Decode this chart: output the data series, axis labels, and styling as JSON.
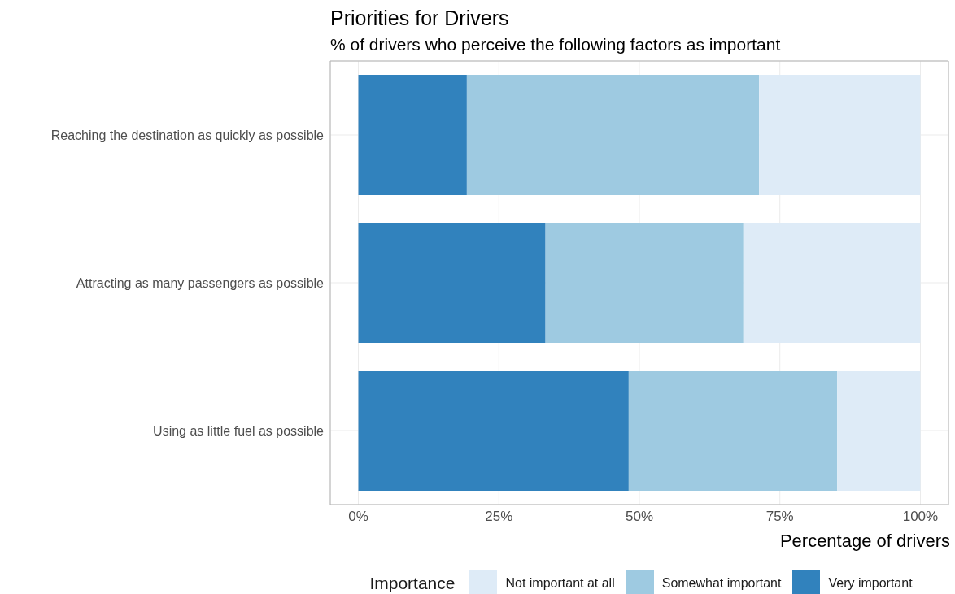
{
  "chart_data": {
    "type": "bar",
    "title": "Priorities for Drivers",
    "subtitle": "% of drivers who perceive the following factors as important",
    "xlabel": "Percentage of drivers",
    "legend_title": "Importance",
    "orientation": "horizontal",
    "stacked": true,
    "categories": [
      "Reaching the destination as quickly as possible",
      "Attracting as many passengers as possible",
      "Using as little fuel as possible"
    ],
    "series": [
      {
        "name": "Very important",
        "color": "#3182bd",
        "values": [
          19.3,
          33.3,
          48.1
        ]
      },
      {
        "name": "Somewhat important",
        "color": "#9ecae1",
        "values": [
          52.0,
          35.2,
          37.1
        ]
      },
      {
        "name": "Not important at all",
        "color": "#deebf7",
        "values": [
          28.7,
          31.5,
          14.8
        ]
      }
    ],
    "xlim": [
      -5,
      105
    ],
    "xticks": [
      {
        "value": 0,
        "label": "0%"
      },
      {
        "value": 25,
        "label": "25%"
      },
      {
        "value": 50,
        "label": "50%"
      },
      {
        "value": 75,
        "label": "75%"
      },
      {
        "value": 100,
        "label": "100%"
      }
    ],
    "grid": true,
    "legend": "bottom"
  }
}
